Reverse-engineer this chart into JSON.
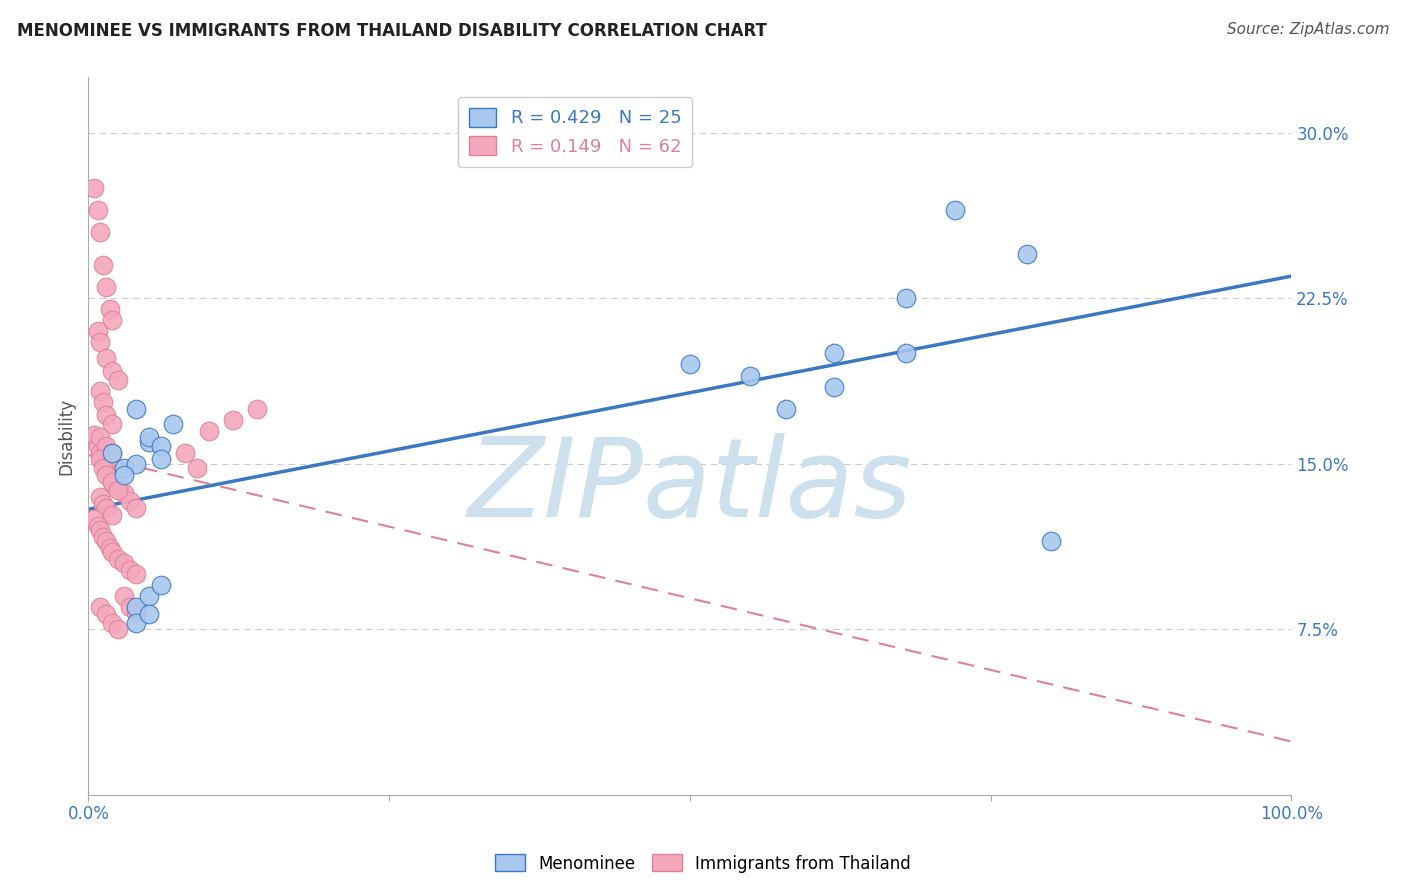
{
  "title": "MENOMINEE VS IMMIGRANTS FROM THAILAND DISABILITY CORRELATION CHART",
  "source": "Source: ZipAtlas.com",
  "ylabel": "Disability",
  "xlim": [
    0.0,
    1.0
  ],
  "ylim": [
    0.0,
    0.325
  ],
  "ytick_vals": [
    0.075,
    0.15,
    0.225,
    0.3
  ],
  "ytick_labels": [
    "7.5%",
    "15.0%",
    "22.5%",
    "30.0%"
  ],
  "xtick_vals": [
    0.0,
    0.25,
    0.5,
    0.75,
    1.0
  ],
  "xtick_labels": [
    "0.0%",
    "",
    "",
    "",
    "100.0%"
  ],
  "legend_line1": "R = 0.429   N = 25",
  "legend_line2": "R = 0.149   N = 62",
  "menominee_x": [
    0.02,
    0.04,
    0.05,
    0.03,
    0.05,
    0.06,
    0.04,
    0.03,
    0.06,
    0.07,
    0.04,
    0.05,
    0.04,
    0.05,
    0.06,
    0.55,
    0.62,
    0.68,
    0.72,
    0.78,
    0.68,
    0.62,
    0.58,
    0.5,
    0.8
  ],
  "menominee_y": [
    0.155,
    0.175,
    0.16,
    0.148,
    0.162,
    0.158,
    0.15,
    0.145,
    0.152,
    0.168,
    0.085,
    0.09,
    0.078,
    0.082,
    0.095,
    0.19,
    0.2,
    0.225,
    0.265,
    0.245,
    0.2,
    0.185,
    0.175,
    0.195,
    0.115
  ],
  "thailand_x": [
    0.005,
    0.008,
    0.01,
    0.012,
    0.015,
    0.018,
    0.02,
    0.008,
    0.01,
    0.015,
    0.02,
    0.025,
    0.01,
    0.012,
    0.015,
    0.02,
    0.005,
    0.008,
    0.01,
    0.012,
    0.015,
    0.018,
    0.02,
    0.025,
    0.03,
    0.035,
    0.04,
    0.01,
    0.015,
    0.02,
    0.01,
    0.012,
    0.015,
    0.02,
    0.025,
    0.01,
    0.012,
    0.015,
    0.02,
    0.005,
    0.008,
    0.01,
    0.012,
    0.015,
    0.018,
    0.02,
    0.025,
    0.03,
    0.035,
    0.04,
    0.01,
    0.015,
    0.02,
    0.025,
    0.03,
    0.035,
    0.04,
    0.08,
    0.09,
    0.1,
    0.12,
    0.14
  ],
  "thailand_y": [
    0.275,
    0.265,
    0.255,
    0.24,
    0.23,
    0.22,
    0.215,
    0.21,
    0.205,
    0.198,
    0.192,
    0.188,
    0.183,
    0.178,
    0.172,
    0.168,
    0.163,
    0.158,
    0.155,
    0.152,
    0.148,
    0.145,
    0.142,
    0.14,
    0.137,
    0.133,
    0.13,
    0.162,
    0.158,
    0.155,
    0.152,
    0.148,
    0.145,
    0.142,
    0.138,
    0.135,
    0.132,
    0.13,
    0.127,
    0.125,
    0.122,
    0.12,
    0.117,
    0.115,
    0.112,
    0.11,
    0.107,
    0.105,
    0.102,
    0.1,
    0.085,
    0.082,
    0.078,
    0.075,
    0.09,
    0.085,
    0.083,
    0.155,
    0.148,
    0.165,
    0.17,
    0.175
  ],
  "blue_line_color": "#3b78c4",
  "pink_line_color": "#e08098",
  "dot_blue": "#a8c8ee",
  "dot_pink": "#f4a8be",
  "watermark_text": "ZIPatlas",
  "watermark_color": "#cde0ee"
}
